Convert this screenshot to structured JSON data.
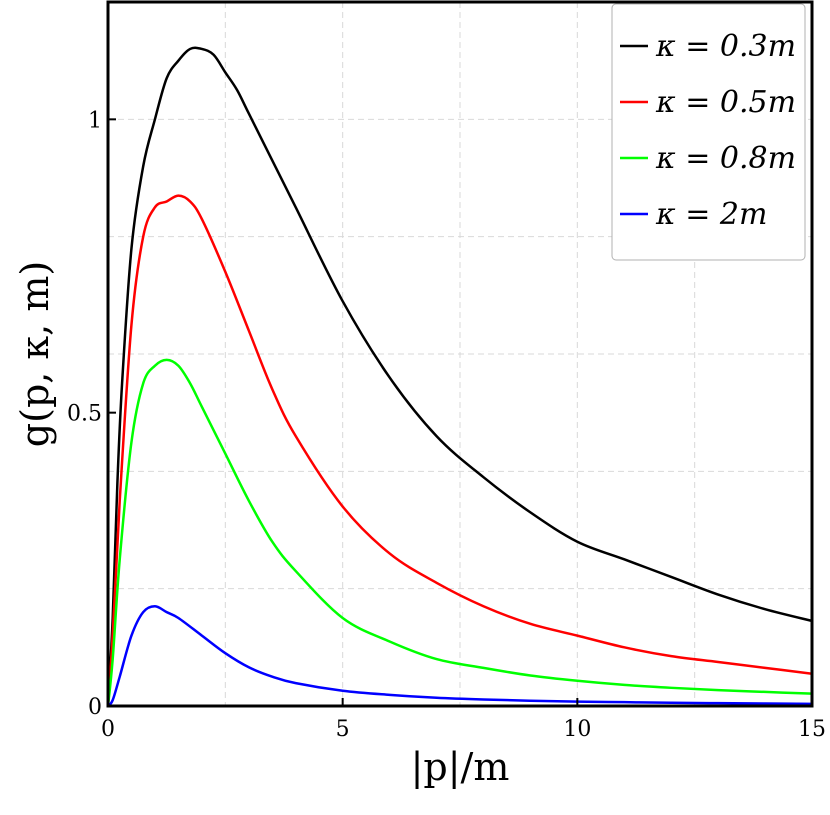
{
  "chart_data": {
    "type": "line",
    "xlabel": "|p|/m",
    "ylabel": "g(p, κ, m)",
    "xlim": [
      0,
      15
    ],
    "ylim": [
      0,
      1.2
    ],
    "x_ticks": [
      0,
      5,
      10,
      15
    ],
    "x_tick_labels": [
      "0",
      "5",
      "10",
      "15"
    ],
    "y_ticks": [
      0,
      0.5,
      1
    ],
    "y_tick_labels": [
      "0",
      "0.5",
      "1"
    ],
    "grid": true,
    "legend_position": "top-right",
    "series": [
      {
        "name": "κ = 0.3m",
        "color": "#000000",
        "x": [
          0,
          0.1,
          0.2,
          0.3,
          0.5,
          0.75,
          1.0,
          1.25,
          1.5,
          1.75,
          2.0,
          2.25,
          2.5,
          2.75,
          3.0,
          3.5,
          4.0,
          5.0,
          6.0,
          7.0,
          8.0,
          9.0,
          10.0,
          11.0,
          12.0,
          13.0,
          14.0,
          15.0
        ],
        "y": [
          0,
          0.15,
          0.38,
          0.55,
          0.78,
          0.92,
          1.0,
          1.07,
          1.1,
          1.12,
          1.12,
          1.11,
          1.08,
          1.05,
          1.01,
          0.93,
          0.85,
          0.69,
          0.56,
          0.46,
          0.39,
          0.33,
          0.28,
          0.25,
          0.22,
          0.19,
          0.165,
          0.145
        ]
      },
      {
        "name": "κ = 0.5m",
        "color": "#ff0000",
        "x": [
          0,
          0.1,
          0.25,
          0.5,
          0.75,
          1.0,
          1.25,
          1.5,
          1.75,
          2.0,
          2.5,
          3.0,
          3.5,
          4.0,
          5.0,
          6.0,
          7.0,
          8.0,
          9.0,
          10.0,
          11.0,
          12.0,
          13.0,
          14.0,
          15.0
        ],
        "y": [
          0,
          0.12,
          0.35,
          0.65,
          0.8,
          0.85,
          0.86,
          0.87,
          0.86,
          0.83,
          0.74,
          0.64,
          0.54,
          0.46,
          0.34,
          0.26,
          0.21,
          0.17,
          0.14,
          0.12,
          0.1,
          0.085,
          0.075,
          0.065,
          0.055
        ]
      },
      {
        "name": "κ = 0.8m",
        "color": "#00ff00",
        "x": [
          0,
          0.1,
          0.25,
          0.5,
          0.75,
          1.0,
          1.25,
          1.5,
          1.75,
          2.0,
          2.5,
          3.0,
          3.5,
          4.0,
          5.0,
          6.0,
          7.0,
          8.0,
          9.0,
          10.0,
          11.0,
          12.0,
          13.0,
          14.0,
          15.0
        ],
        "y": [
          0,
          0.08,
          0.25,
          0.45,
          0.55,
          0.58,
          0.59,
          0.58,
          0.55,
          0.51,
          0.43,
          0.35,
          0.28,
          0.23,
          0.15,
          0.11,
          0.08,
          0.065,
          0.052,
          0.043,
          0.036,
          0.031,
          0.027,
          0.024,
          0.021
        ]
      },
      {
        "name": "κ = 2m",
        "color": "#0000ff",
        "x": [
          0,
          0.1,
          0.25,
          0.5,
          0.75,
          1.0,
          1.25,
          1.5,
          2.0,
          2.5,
          3.0,
          3.5,
          4.0,
          5.0,
          6.0,
          7.0,
          8.0,
          9.0,
          10.0,
          11.0,
          12.0,
          13.0,
          14.0,
          15.0
        ],
        "y": [
          0,
          0.01,
          0.05,
          0.12,
          0.16,
          0.17,
          0.16,
          0.15,
          0.12,
          0.09,
          0.066,
          0.05,
          0.039,
          0.026,
          0.019,
          0.014,
          0.011,
          0.009,
          0.0075,
          0.0065,
          0.0055,
          0.0048,
          0.0042,
          0.0037
        ]
      }
    ]
  }
}
